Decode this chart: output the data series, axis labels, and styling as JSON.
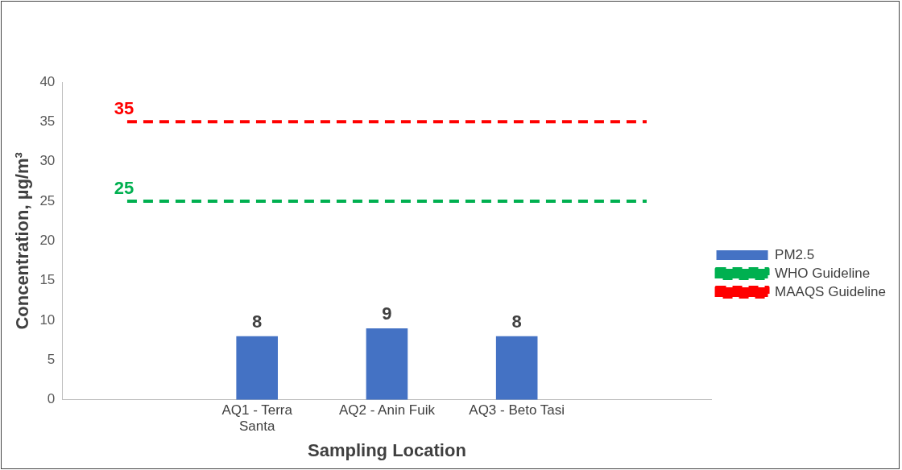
{
  "chart_data": {
    "type": "bar",
    "xlabel": "Sampling Location",
    "ylabel": "Concentration, µg/m³",
    "categories": [
      null,
      "AQ1 - Terra Santa",
      "AQ2 - Anin Fuik",
      "AQ3 - Beto Tasi",
      null
    ],
    "series": [
      {
        "name": "PM2.5",
        "color": "#4472c4",
        "values": [
          null,
          8,
          9,
          8,
          null
        ],
        "value_labels": [
          null,
          "8",
          "9",
          "8",
          null
        ]
      },
      {
        "name": "WHO Guideline",
        "type": "line",
        "color": "#00b050",
        "line_style": "dashed",
        "values": [
          25,
          25,
          25,
          25,
          25
        ],
        "value_labels": [
          "25",
          null,
          null,
          null,
          null
        ]
      },
      {
        "name": "MAAQS Guideline",
        "type": "line",
        "color": "#ff0000",
        "line_style": "dashed",
        "values": [
          35,
          35,
          35,
          35,
          35
        ],
        "value_labels": [
          "35",
          null,
          null,
          null,
          null
        ]
      }
    ],
    "ylim": [
      0,
      40
    ],
    "yticks": [
      0,
      5,
      10,
      15,
      20,
      25,
      30,
      35,
      40
    ],
    "grid": false,
    "legend": "right",
    "marker": "none"
  }
}
